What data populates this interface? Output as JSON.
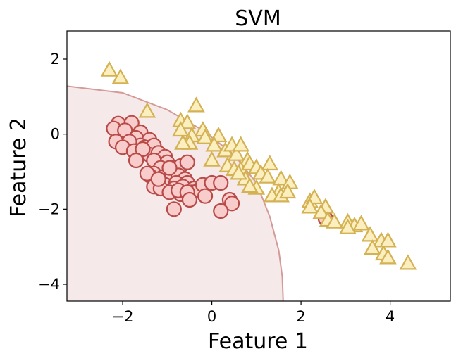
{
  "chart_data": {
    "type": "scatter",
    "title": "SVM",
    "xlabel": "Feature 1",
    "ylabel": "Feature 2",
    "xlim": [
      -3.25,
      5.35
    ],
    "ylim": [
      -4.45,
      2.75
    ],
    "x_ticks": [
      -2,
      0,
      2,
      4
    ],
    "x_tick_labels": [
      "−2",
      "0",
      "2",
      "4"
    ],
    "y_ticks": [
      2,
      0,
      -2,
      -4
    ],
    "y_tick_labels": [
      "2",
      "0",
      "−2",
      "−4"
    ],
    "grid": false,
    "legend": "none",
    "decision_boundary": {
      "description": "ellipse-like boundary enclosing class 0 region",
      "points": [
        [
          -3.25,
          1.28
        ],
        [
          -2.0,
          1.1
        ],
        [
          -1.0,
          0.65
        ],
        [
          -0.2,
          0.1
        ],
        [
          0.5,
          -0.55
        ],
        [
          1.0,
          -1.3
        ],
        [
          1.3,
          -2.2
        ],
        [
          1.5,
          -3.1
        ],
        [
          1.58,
          -3.8
        ],
        [
          1.6,
          -4.45
        ]
      ],
      "color": "#d49a98",
      "region_fill": "#f5e9e9"
    },
    "series": [
      {
        "marker": "circle",
        "fill": "#f9cccc",
        "edge": "#b84a48",
        "points": [
          [
            -2.1,
            0.28
          ],
          [
            -1.8,
            0.3
          ],
          [
            -1.6,
            0.05
          ],
          [
            -2.2,
            0.15
          ],
          [
            -1.95,
            0.1
          ],
          [
            -1.7,
            -0.1
          ],
          [
            -1.4,
            -0.15
          ],
          [
            -1.6,
            -0.3
          ],
          [
            -1.85,
            -0.2
          ],
          [
            -2.15,
            -0.2
          ],
          [
            -2.0,
            -0.35
          ],
          [
            -1.75,
            -0.45
          ],
          [
            -1.5,
            -0.35
          ],
          [
            -1.3,
            -0.3
          ],
          [
            -1.4,
            -0.55
          ],
          [
            -1.55,
            -0.4
          ],
          [
            -1.2,
            -0.5
          ],
          [
            -1.05,
            -0.6
          ],
          [
            -1.3,
            -0.7
          ],
          [
            -1.7,
            -0.7
          ],
          [
            -1.0,
            -0.75
          ],
          [
            -0.85,
            -0.9
          ],
          [
            -1.15,
            -0.9
          ],
          [
            -0.95,
            -1.0
          ],
          [
            -0.7,
            -0.85
          ],
          [
            -0.55,
            -0.75
          ],
          [
            -1.3,
            -1.05
          ],
          [
            -1.1,
            -1.15
          ],
          [
            -0.9,
            -1.15
          ],
          [
            -1.4,
            -1.1
          ],
          [
            -0.75,
            -1.1
          ],
          [
            -0.6,
            -1.2
          ],
          [
            -1.25,
            -1.3
          ],
          [
            -1.05,
            -1.35
          ],
          [
            -0.8,
            -1.3
          ],
          [
            -0.55,
            -1.3
          ],
          [
            -1.3,
            -1.4
          ],
          [
            -1.15,
            -1.45
          ],
          [
            -0.85,
            -1.45
          ],
          [
            -0.65,
            -1.4
          ],
          [
            -0.4,
            -1.45
          ],
          [
            -0.95,
            -1.55
          ],
          [
            -0.7,
            -1.6
          ],
          [
            -0.45,
            -1.55
          ],
          [
            -0.3,
            -1.5
          ],
          [
            -0.75,
            -1.5
          ],
          [
            -0.55,
            -1.55
          ],
          [
            -0.2,
            -1.35
          ],
          [
            0.0,
            -1.3
          ],
          [
            0.2,
            -1.3
          ],
          [
            -0.15,
            -1.65
          ],
          [
            -0.5,
            -1.75
          ],
          [
            0.4,
            -1.75
          ],
          [
            0.45,
            -1.85
          ],
          [
            -0.85,
            -2.0
          ],
          [
            0.2,
            -2.05
          ],
          [
            2.55,
            -2.25
          ],
          [
            -1.45,
            -1.05
          ],
          [
            -0.95,
            -0.9
          ],
          [
            -1.2,
            -1.2
          ]
        ]
      },
      {
        "marker": "triangle",
        "fill": "#fbeebf",
        "edge": "#d4b253",
        "points": [
          [
            -2.3,
            1.7
          ],
          [
            -2.05,
            1.5
          ],
          [
            -1.45,
            0.6
          ],
          [
            -0.35,
            0.75
          ],
          [
            -0.7,
            0.35
          ],
          [
            -0.55,
            0.3
          ],
          [
            -0.7,
            0.1
          ],
          [
            -0.45,
            -0.05
          ],
          [
            -0.2,
            0.1
          ],
          [
            -0.5,
            -0.25
          ],
          [
            -0.65,
            -0.25
          ],
          [
            -0.15,
            -0.1
          ],
          [
            0.15,
            -0.05
          ],
          [
            0.05,
            -0.3
          ],
          [
            0.3,
            -0.45
          ],
          [
            0.45,
            -0.3
          ],
          [
            0.55,
            -0.55
          ],
          [
            0.65,
            -0.3
          ],
          [
            0.8,
            -0.7
          ],
          [
            0.0,
            -0.7
          ],
          [
            0.35,
            -0.85
          ],
          [
            0.5,
            -0.95
          ],
          [
            0.65,
            -0.95
          ],
          [
            0.85,
            -0.8
          ],
          [
            1.0,
            -0.9
          ],
          [
            0.75,
            -1.2
          ],
          [
            0.6,
            -1.05
          ],
          [
            1.1,
            -1.05
          ],
          [
            1.3,
            -0.8
          ],
          [
            1.25,
            -1.15
          ],
          [
            1.55,
            -1.2
          ],
          [
            1.75,
            -1.3
          ],
          [
            1.0,
            -1.45
          ],
          [
            0.85,
            -1.4
          ],
          [
            1.5,
            -1.55
          ],
          [
            1.35,
            -1.65
          ],
          [
            1.55,
            -1.65
          ],
          [
            1.7,
            -1.55
          ],
          [
            2.2,
            -1.8
          ],
          [
            2.3,
            -1.7
          ],
          [
            2.2,
            -1.95
          ],
          [
            2.55,
            -1.95
          ],
          [
            2.45,
            -2.1
          ],
          [
            2.6,
            -2.3
          ],
          [
            2.75,
            -2.35
          ],
          [
            3.05,
            -2.35
          ],
          [
            3.2,
            -2.45
          ],
          [
            3.35,
            -2.4
          ],
          [
            3.05,
            -2.5
          ],
          [
            3.55,
            -2.7
          ],
          [
            3.8,
            -2.85
          ],
          [
            3.6,
            -3.05
          ],
          [
            3.85,
            -3.2
          ],
          [
            3.95,
            -3.3
          ],
          [
            3.95,
            -2.85
          ],
          [
            4.4,
            -3.45
          ]
        ]
      }
    ]
  }
}
